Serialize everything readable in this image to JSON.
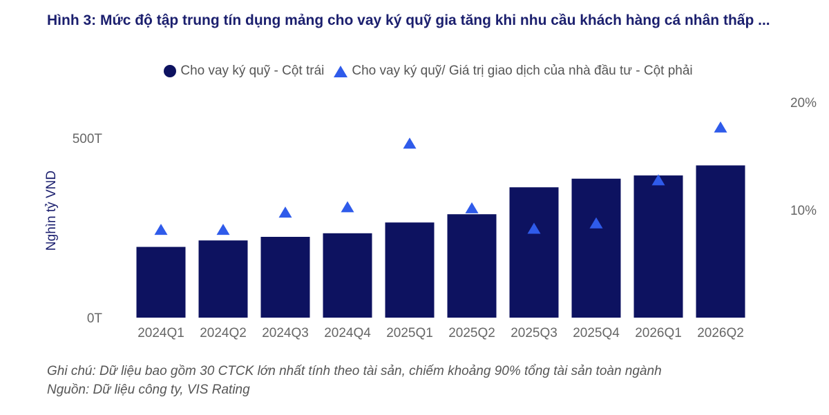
{
  "colors": {
    "bar": "#0d1260",
    "triangle": "#2f5bea",
    "title": "#1b1f6e"
  },
  "chart_data": {
    "type": "bar",
    "title": "Hình 3: Mức độ tập trung tín dụng mảng cho vay ký quỹ gia tăng khi nhu cầu khách hàng cá nhân thấp ...",
    "ylabel": "Nghìn tỷ VND",
    "xlabel": "",
    "categories": [
      "2024Q1",
      "2024Q2",
      "2024Q3",
      "2024Q4",
      "2025Q1",
      "2025Q2",
      "2025Q3",
      "2025Q4",
      "2026Q1",
      "2026Q2"
    ],
    "legend_position": "top-center",
    "grid": false,
    "left_axis": {
      "ylim": [
        0,
        500
      ],
      "ticks": [
        0,
        500
      ],
      "tick_labels": [
        "0T",
        "500T"
      ]
    },
    "right_axis": {
      "ylim": [
        0,
        20
      ],
      "ticks": [
        10,
        20
      ],
      "tick_labels": [
        "10%",
        "20%"
      ]
    },
    "series": [
      {
        "name": "Cho vay ký quỹ - Cột trái",
        "type": "bar",
        "axis": "left",
        "values": [
          197,
          215,
          225,
          235,
          265,
          288,
          363,
          387,
          396,
          424
        ]
      },
      {
        "name": "Cho vay ký quỹ/ Giá trị giao dịch của nhà đầu tư - Cột phải",
        "type": "scatter",
        "marker": "triangle",
        "axis": "right",
        "values": [
          8.2,
          8.2,
          9.8,
          10.3,
          16.2,
          10.2,
          8.3,
          8.8,
          12.8,
          17.7
        ]
      }
    ]
  },
  "notes": {
    "line1": "Ghi chú: Dữ liệu bao gồm 30 CTCK lớn nhất tính theo tài sản, chiếm khoảng 90% tổng tài sản toàn ngành",
    "line2": "Nguồn: Dữ liệu công ty, VIS Rating"
  }
}
